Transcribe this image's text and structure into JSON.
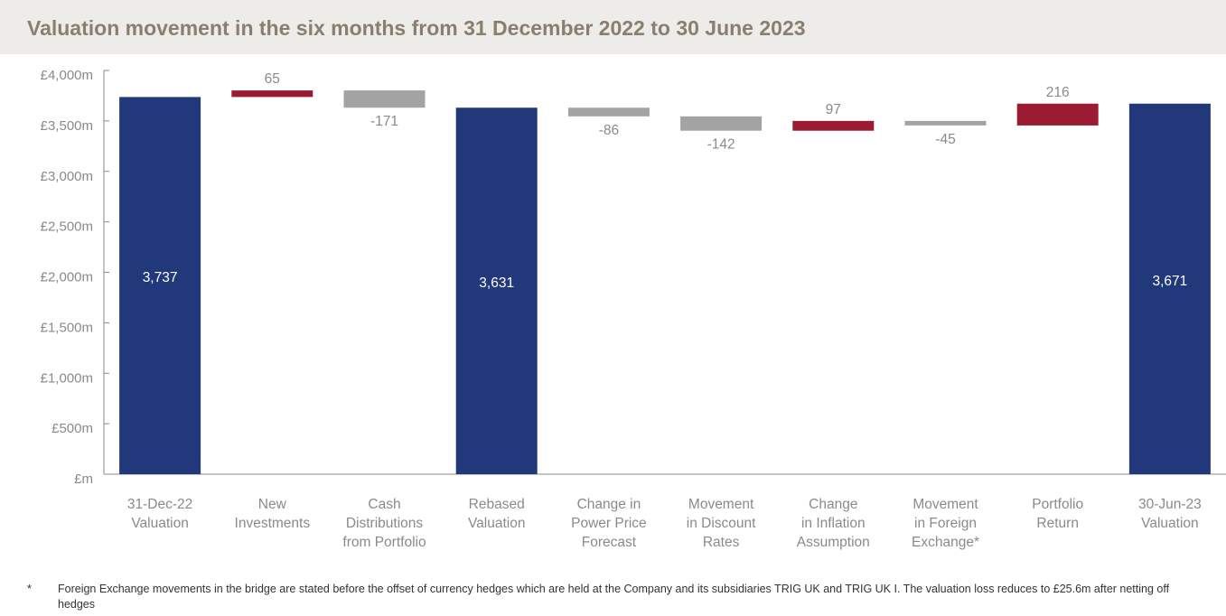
{
  "chart_data": {
    "type": "bar",
    "subtype": "waterfall",
    "title": "Valuation movement in the six months from 31 December 2022 to 30 June 2023",
    "yticks": [
      "£m",
      "£500m",
      "£1,000m",
      "£1,500m",
      "£2,000m",
      "£2,500m",
      "£3,000m",
      "£3,500m",
      "£4,000m"
    ],
    "ylim": [
      0,
      4000
    ],
    "grid": false,
    "categories": [
      [
        "31-Dec-22",
        "Valuation"
      ],
      [
        "New",
        "Investments"
      ],
      [
        "Cash",
        "Distributions",
        "from Portfolio"
      ],
      [
        "Rebased",
        "Valuation"
      ],
      [
        "Change in",
        "Power Price",
        "Forecast"
      ],
      [
        "Movement",
        "in Discount",
        "Rates"
      ],
      [
        "Change",
        "in Inflation",
        "Assumption"
      ],
      [
        "Movement",
        "in Foreign",
        "Exchange*"
      ],
      [
        "Portfolio",
        "Return"
      ],
      [
        "30-Jun-23",
        "Valuation"
      ]
    ],
    "bars": [
      {
        "kind": "total",
        "value": 3737,
        "label": "3,737"
      },
      {
        "kind": "delta",
        "value": 65,
        "label": "65"
      },
      {
        "kind": "delta",
        "value": -171,
        "label": "-171"
      },
      {
        "kind": "total",
        "value": 3631,
        "label": "3,631"
      },
      {
        "kind": "delta",
        "value": -86,
        "label": "-86"
      },
      {
        "kind": "delta",
        "value": -142,
        "label": "-142"
      },
      {
        "kind": "delta",
        "value": 97,
        "label": "97"
      },
      {
        "kind": "delta",
        "value": -45,
        "label": "-45"
      },
      {
        "kind": "delta",
        "value": 216,
        "label": "216"
      },
      {
        "kind": "total",
        "value": 3671,
        "label": "3,671"
      }
    ],
    "colors": {
      "total": "#21397a",
      "increase": "#9b1b32",
      "decrease": "#a3a3a3",
      "total_label": "#ffffff",
      "delta_label": "#8a8a8a",
      "axis": "#8a8a8a",
      "title": "#8a7e6e"
    }
  },
  "footnote": {
    "mark": "*",
    "text": "Foreign Exchange movements in the bridge are stated before the offset of currency hedges which are held at the Company and its subsidiaries TRIG UK and TRIG UK I. The valuation loss reduces to £25.6m after netting off hedges"
  }
}
